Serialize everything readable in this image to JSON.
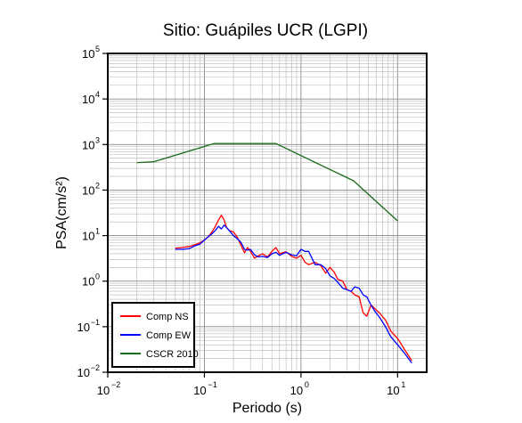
{
  "chart_data": {
    "type": "line",
    "title": "Sitio: Guápiles UCR (LGPI)",
    "xlabel": "Periodo (s)",
    "ylabel": "PSA(cm/s²)",
    "xscale": "log",
    "yscale": "log",
    "xlim": [
      0.01,
      20
    ],
    "ylim": [
      0.01,
      100000
    ],
    "grid": true,
    "x_ticks": [
      {
        "value": 0.01,
        "base": "10",
        "exp": "−2"
      },
      {
        "value": 0.1,
        "base": "10",
        "exp": "−1"
      },
      {
        "value": 1,
        "base": "10",
        "exp": "0"
      },
      {
        "value": 10,
        "base": "10",
        "exp": "1"
      }
    ],
    "y_ticks": [
      {
        "value": 0.01,
        "base": "10",
        "exp": "−2"
      },
      {
        "value": 0.1,
        "base": "10",
        "exp": "−1"
      },
      {
        "value": 1,
        "base": "10",
        "exp": "0"
      },
      {
        "value": 10,
        "base": "10",
        "exp": "1"
      },
      {
        "value": 100,
        "base": "10",
        "exp": "2"
      },
      {
        "value": 1000,
        "base": "10",
        "exp": "3"
      },
      {
        "value": 10000,
        "base": "10",
        "exp": "4"
      },
      {
        "value": 100000,
        "base": "10",
        "exp": "5"
      }
    ],
    "legend_position": "bottom-left",
    "series": [
      {
        "name": "Comp NS",
        "color": "#ff0000",
        "x": [
          0.05,
          0.06,
          0.07,
          0.08,
          0.09,
          0.1,
          0.11,
          0.12,
          0.13,
          0.14,
          0.15,
          0.16,
          0.17,
          0.18,
          0.2,
          0.22,
          0.24,
          0.26,
          0.28,
          0.3,
          0.33,
          0.36,
          0.4,
          0.45,
          0.5,
          0.55,
          0.6,
          0.7,
          0.8,
          0.9,
          1.0,
          1.1,
          1.2,
          1.4,
          1.6,
          1.8,
          2.0,
          2.2,
          2.4,
          2.7,
          3.0,
          3.3,
          3.6,
          4.0,
          4.4,
          4.8,
          5.3,
          5.8,
          6.5,
          7.5,
          8.5,
          10,
          12,
          14
        ],
        "y": [
          5.3,
          5.5,
          5.8,
          6.3,
          7,
          8,
          9.5,
          12,
          16,
          22,
          28,
          22,
          15,
          13,
          12,
          9,
          6,
          4.2,
          5.5,
          4.5,
          3.2,
          3.6,
          4,
          3.4,
          4.5,
          5.5,
          4,
          4.4,
          3.5,
          3.2,
          3.7,
          2.6,
          2.3,
          2.6,
          2.2,
          1.5,
          2,
          1.6,
          1.1,
          1.0,
          0.65,
          0.6,
          0.5,
          0.45,
          0.2,
          0.17,
          0.3,
          0.25,
          0.2,
          0.14,
          0.08,
          0.055,
          0.03,
          0.018
        ]
      },
      {
        "name": "Comp EW",
        "color": "#0000ff",
        "x": [
          0.05,
          0.06,
          0.07,
          0.08,
          0.09,
          0.1,
          0.11,
          0.12,
          0.13,
          0.14,
          0.15,
          0.16,
          0.17,
          0.18,
          0.2,
          0.22,
          0.24,
          0.26,
          0.28,
          0.3,
          0.33,
          0.36,
          0.4,
          0.45,
          0.5,
          0.55,
          0.6,
          0.7,
          0.8,
          0.9,
          1.0,
          1.1,
          1.2,
          1.4,
          1.6,
          1.8,
          2.0,
          2.2,
          2.4,
          2.7,
          3.0,
          3.3,
          3.6,
          4.0,
          4.4,
          4.8,
          5.3,
          5.8,
          6.5,
          7.5,
          8.5,
          10,
          12,
          14
        ],
        "y": [
          5,
          5,
          5.2,
          6,
          6.5,
          8,
          9.5,
          11,
          13,
          16,
          14,
          17,
          15,
          13,
          10,
          8.5,
          7,
          5,
          4.8,
          5,
          3.8,
          3.4,
          3.5,
          3.3,
          4,
          4.3,
          3.7,
          4.3,
          3.8,
          3.6,
          5,
          4.5,
          4.5,
          2.3,
          2.3,
          1.9,
          1.3,
          1.15,
          0.95,
          0.7,
          0.65,
          0.6,
          0.75,
          0.7,
          0.5,
          0.45,
          0.3,
          0.22,
          0.16,
          0.1,
          0.06,
          0.04,
          0.025,
          0.016
        ]
      },
      {
        "name": "CSCR 2010",
        "color": "#1a6b1a",
        "x": [
          0.02,
          0.03,
          0.125,
          0.55,
          3.5,
          10
        ],
        "y": [
          400,
          420,
          1050,
          1050,
          160,
          21
        ]
      }
    ]
  }
}
